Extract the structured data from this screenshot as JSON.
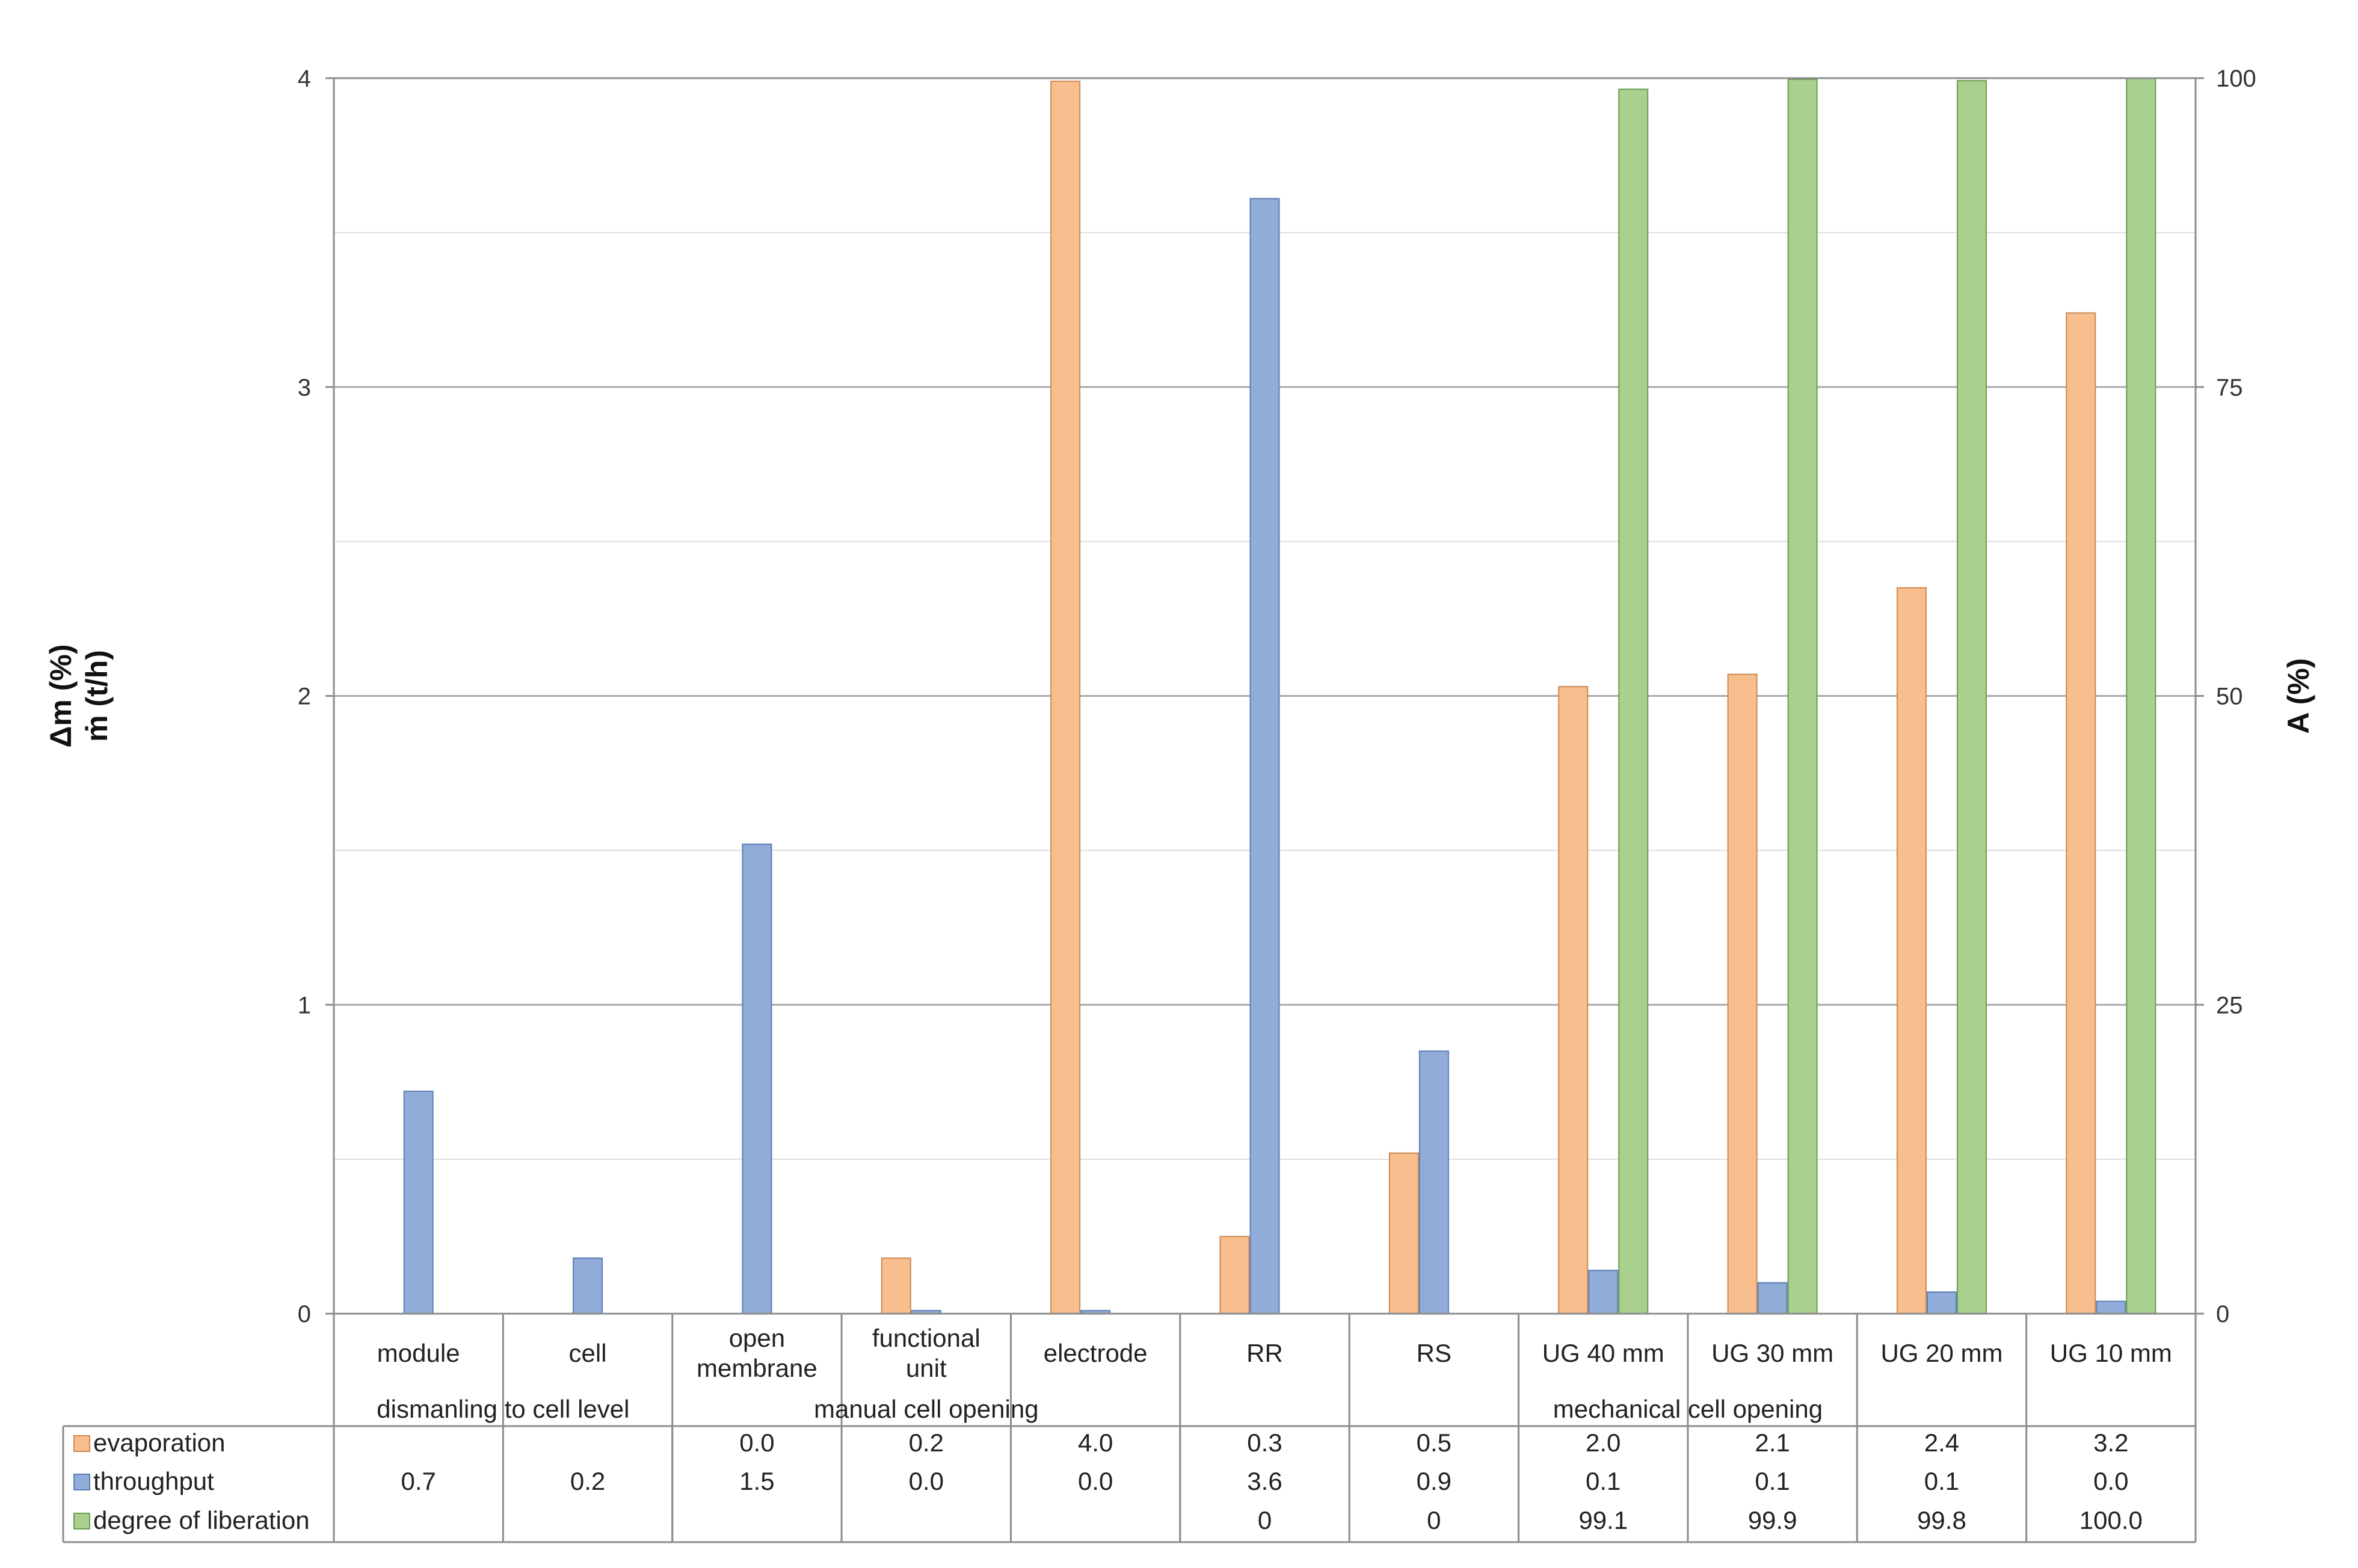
{
  "chart_data": {
    "type": "bar",
    "categories": [
      "module",
      "cell",
      "open membrane",
      "functional unit",
      "electrode",
      "RR",
      "RS",
      "UG 40 mm",
      "UG 30 mm",
      "UG 20 mm",
      "UG 10 mm"
    ],
    "category_lines": [
      [
        "module"
      ],
      [
        "cell"
      ],
      [
        "open",
        "membrane"
      ],
      [
        "functional",
        "unit"
      ],
      [
        "electrode"
      ],
      [
        "RR"
      ],
      [
        "RS"
      ],
      [
        "UG 40 mm"
      ],
      [
        "UG 30 mm"
      ],
      [
        "UG 20 mm"
      ],
      [
        "UG 10 mm"
      ]
    ],
    "groups": [
      {
        "label": "dismanling to cell level",
        "start": 0,
        "end": 1
      },
      {
        "label": "manual cell opening",
        "start": 2,
        "end": 4
      },
      {
        "label": "mechanical cell opening",
        "start": 5,
        "end": 10
      }
    ],
    "series": [
      {
        "name": "evaporation",
        "axis": "left",
        "color": "#f9be8d",
        "values": [
          null,
          null,
          0.0,
          0.18,
          3.99,
          0.25,
          0.52,
          2.03,
          2.07,
          2.35,
          3.24
        ],
        "labels": [
          "",
          "",
          "0.0",
          "0.2",
          "4.0",
          "0.3",
          "0.5",
          "2.0",
          "2.1",
          "2.4",
          "3.2"
        ]
      },
      {
        "name": "throughput",
        "axis": "left",
        "color": "#91acd8",
        "values": [
          0.72,
          0.18,
          1.52,
          0.01,
          0.01,
          3.61,
          0.85,
          0.14,
          0.1,
          0.07,
          0.04
        ],
        "labels": [
          "0.7",
          "0.2",
          "1.5",
          "0.0",
          "0.0",
          "3.6",
          "0.9",
          "0.1",
          "0.1",
          "0.1",
          "0.0"
        ]
      },
      {
        "name": "degree of liberation",
        "axis": "right",
        "color": "#a9d08e",
        "values": [
          null,
          null,
          null,
          null,
          null,
          0,
          0,
          99.1,
          99.9,
          99.8,
          100.0
        ],
        "labels": [
          "",
          "",
          "",
          "",
          "",
          "0",
          "0",
          "99.1",
          "99.9",
          "99.8",
          "100.0"
        ]
      }
    ],
    "left_axis": {
      "title_lines": [
        "Δm (%)",
        "ṁ (t/h)"
      ],
      "ylim": [
        0,
        4
      ],
      "ticks": [
        "0",
        "1",
        "2",
        "3",
        "4"
      ]
    },
    "right_axis": {
      "title": "A (%)",
      "ylim": [
        0,
        100
      ],
      "ticks": [
        "0",
        "25",
        "50",
        "75",
        "100"
      ]
    },
    "grid": true,
    "legend_placement": "data table below chart"
  }
}
